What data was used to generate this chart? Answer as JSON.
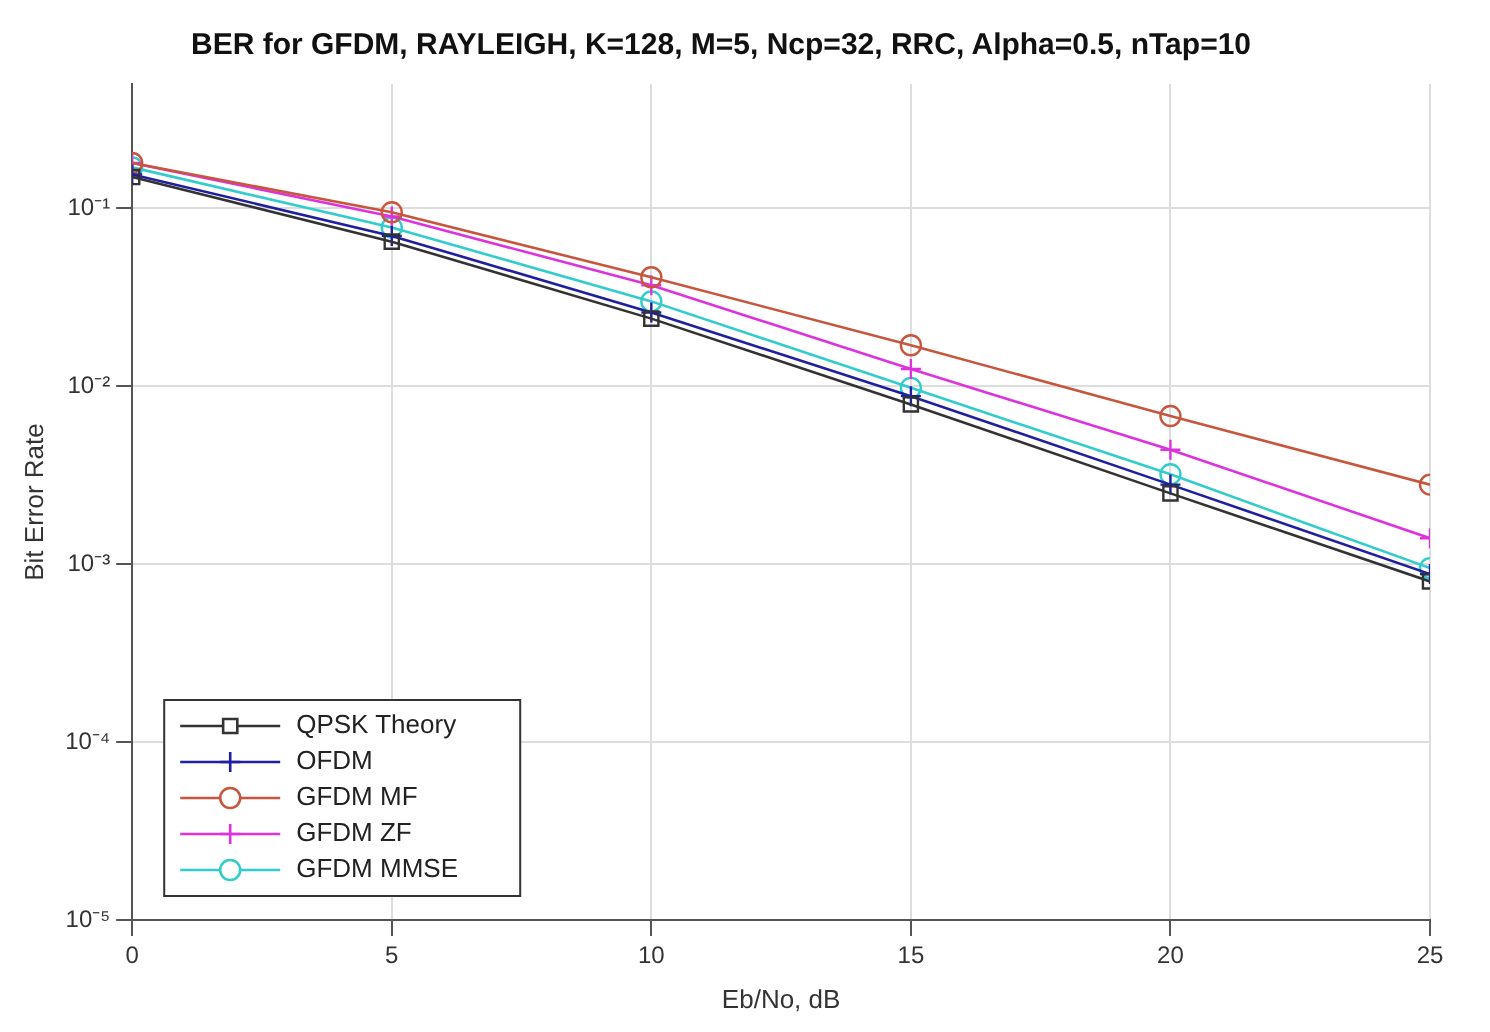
{
  "chart_data": {
    "type": "line",
    "title": "BER for GFDM, RAYLEIGH, K=128, M=5, Ncp=32, RRC, Alpha=0.5, nTap=10",
    "xlabel": "Eb/No, dB",
    "ylabel": "Bit Error Rate",
    "x": [
      0,
      5,
      10,
      15,
      20,
      25
    ],
    "xlim": [
      0,
      25
    ],
    "xticks": [
      0,
      5,
      10,
      15,
      20,
      25
    ],
    "ylim": [
      1e-05,
      0.5
    ],
    "yticks": [
      {
        "value": 1e-05,
        "label": "10⁻⁵"
      },
      {
        "value": 0.0001,
        "label": "10⁻⁴"
      },
      {
        "value": 0.001,
        "label": "10⁻³"
      },
      {
        "value": 0.01,
        "label": "10⁻²"
      },
      {
        "value": 0.1,
        "label": "10⁻¹"
      }
    ],
    "log": "y",
    "grid": true,
    "legend": "bottom left",
    "line_style": "solid",
    "series": [
      {
        "name": "QPSK Theory",
        "color": "#333333",
        "marker": "square",
        "values": [
          0.15,
          0.065,
          0.024,
          0.0079,
          0.0025,
          0.0008
        ]
      },
      {
        "name": "OFDM",
        "color": "#1f1f9f",
        "marker": "cross",
        "values": [
          0.155,
          0.07,
          0.026,
          0.0088,
          0.0028,
          0.00088
        ]
      },
      {
        "name": "GFDM MF",
        "color": "#c8553d",
        "marker": "circle",
        "values": [
          0.18,
          0.095,
          0.041,
          0.017,
          0.0068,
          0.0028
        ]
      },
      {
        "name": "GFDM ZF",
        "color": "#dd33dd",
        "marker": "cross",
        "values": [
          0.18,
          0.09,
          0.037,
          0.0125,
          0.0044,
          0.0014
        ]
      },
      {
        "name": "GFDM MMSE",
        "color": "#33cccc",
        "marker": "circle",
        "values": [
          0.17,
          0.078,
          0.03,
          0.0098,
          0.0032,
          0.00095
        ]
      }
    ]
  }
}
